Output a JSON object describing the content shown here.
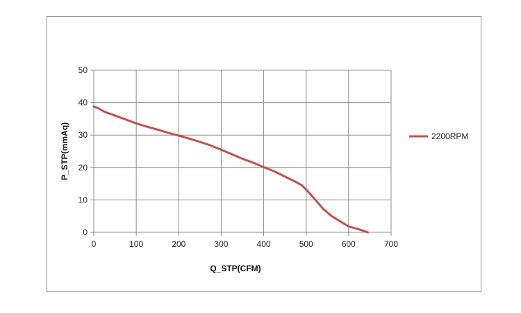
{
  "chart_data": {
    "type": "line",
    "xlabel": "Q_STP(CFM)",
    "ylabel": "P_STP(mmAq)",
    "xlim": [
      0,
      700
    ],
    "ylim": [
      0,
      50
    ],
    "xticks": [
      0,
      100,
      200,
      300,
      400,
      500,
      600,
      700
    ],
    "yticks": [
      0,
      10,
      20,
      30,
      40,
      50
    ],
    "grid": true,
    "legend": "right",
    "series": [
      {
        "name": "2200RPM",
        "color": "#c0504d",
        "x": [
          0,
          10,
          25,
          50,
          75,
          100,
          125,
          150,
          175,
          200,
          225,
          250,
          275,
          300,
          325,
          350,
          375,
          400,
          425,
          450,
          475,
          490,
          500,
          510,
          525,
          540,
          560,
          575,
          600,
          625,
          645
        ],
        "y": [
          38.8,
          38.3,
          37.2,
          36.0,
          34.8,
          33.6,
          32.6,
          31.7,
          30.7,
          29.8,
          28.9,
          27.9,
          26.8,
          25.5,
          24.1,
          22.7,
          21.5,
          20.1,
          18.8,
          17.2,
          15.6,
          14.5,
          13.2,
          11.8,
          9.5,
          7.2,
          5.0,
          3.8,
          1.8,
          0.9,
          0.0
        ]
      }
    ]
  }
}
